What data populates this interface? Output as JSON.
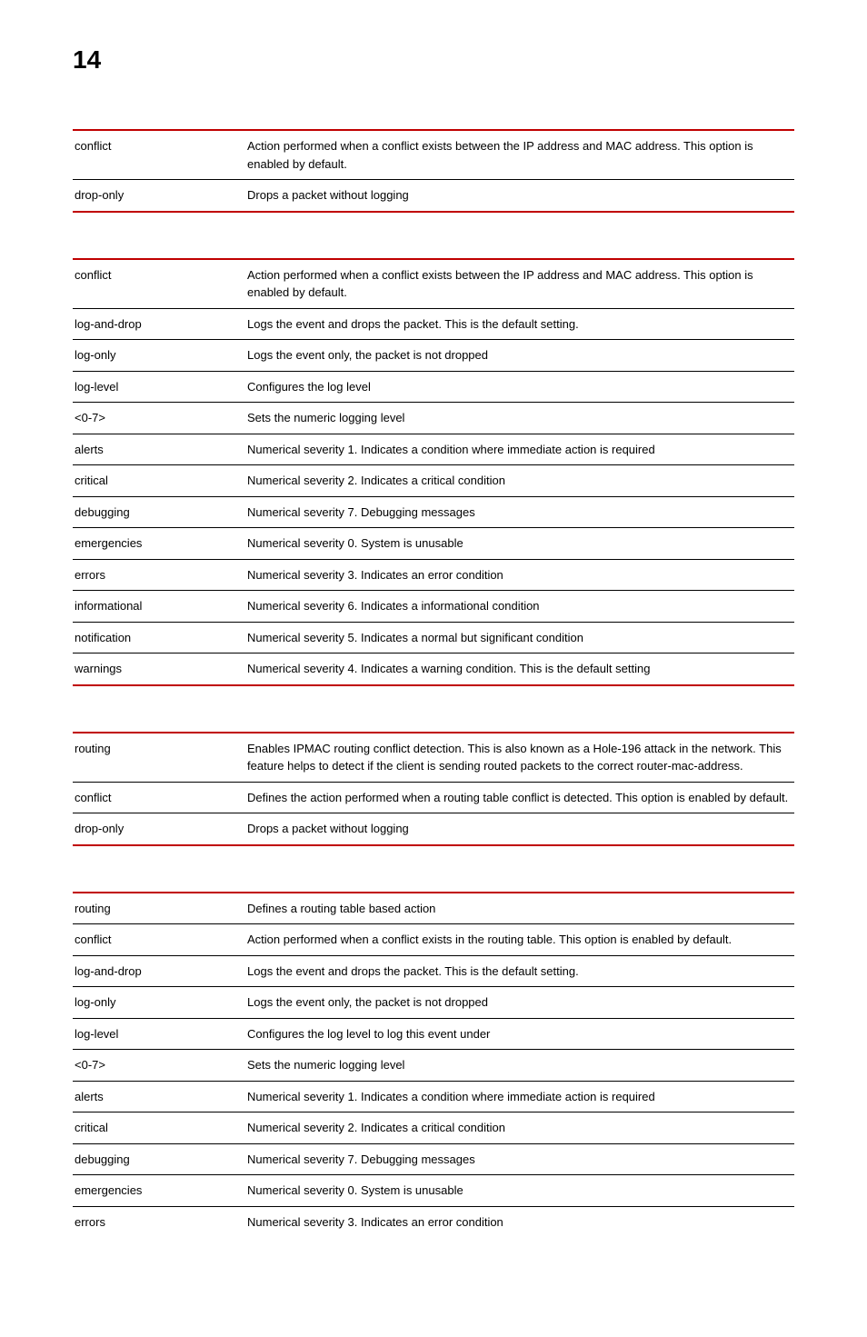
{
  "page_number": "14",
  "colors": {
    "rule": "#c00000",
    "inner_rule": "#000000",
    "text": "#000000",
    "background": "#ffffff"
  },
  "fontsize": {
    "page_number": 28,
    "body": 13
  },
  "tables": [
    {
      "rows": [
        {
          "term": "conflict",
          "desc": "Action performed when a conflict exists between the IP address and MAC address. This option is enabled by default."
        },
        {
          "term": "drop-only",
          "desc": "Drops a packet without logging"
        }
      ]
    },
    {
      "rows": [
        {
          "term": "conflict",
          "desc": "Action performed when a conflict exists between the IP address and MAC address. This option is enabled by default."
        },
        {
          "term": "log-and-drop",
          "desc": "Logs the event and drops the packet. This is the default setting."
        },
        {
          "term": "log-only",
          "desc": "Logs the event only, the packet is not dropped"
        },
        {
          "term": "log-level",
          "desc": "Configures the log level"
        },
        {
          "term": "<0-7>",
          "desc": "Sets the numeric logging level"
        },
        {
          "term": "alerts",
          "desc": "Numerical severity 1. Indicates a condition where immediate action is required"
        },
        {
          "term": "critical",
          "desc": "Numerical severity 2. Indicates a critical condition"
        },
        {
          "term": "debugging",
          "desc": "Numerical severity 7. Debugging messages"
        },
        {
          "term": "emergencies",
          "desc": "Numerical severity 0. System is unusable"
        },
        {
          "term": "errors",
          "desc": "Numerical severity 3. Indicates an error condition"
        },
        {
          "term": "informational",
          "desc": "Numerical severity 6. Indicates a informational condition"
        },
        {
          "term": "notification",
          "desc": "Numerical severity 5. Indicates a normal but significant condition"
        },
        {
          "term": "warnings",
          "desc": "Numerical severity 4. Indicates a warning condition. This is the default setting"
        }
      ]
    },
    {
      "rows": [
        {
          "term": "routing",
          "desc": "Enables IPMAC routing conflict detection. This is also known as a Hole-196 attack in the network. This feature helps to detect if the client is sending routed packets to the correct router-mac-address."
        },
        {
          "term": "conflict",
          "desc": "Defines the action performed when a routing table conflict is detected. This option is enabled by default."
        },
        {
          "term": "drop-only",
          "desc": "Drops a packet without logging"
        }
      ]
    },
    {
      "rows": [
        {
          "term": "routing",
          "desc": "Defines a routing table based action"
        },
        {
          "term": "conflict",
          "desc": "Action performed when a conflict exists in the routing table. This option is enabled by default."
        },
        {
          "term": "log-and-drop",
          "desc": "Logs the event and drops the packet. This is the default setting."
        },
        {
          "term": "log-only",
          "desc": "Logs the event only, the packet is not dropped"
        },
        {
          "term": "log-level",
          "desc": "Configures the log level to log this event under"
        },
        {
          "term": "<0-7>",
          "desc": "Sets the numeric logging level"
        },
        {
          "term": "alerts",
          "desc": "Numerical severity 1. Indicates a condition where immediate action is required"
        },
        {
          "term": "critical",
          "desc": "Numerical severity 2. Indicates a critical condition"
        },
        {
          "term": "debugging",
          "desc": "Numerical severity 7. Debugging messages"
        },
        {
          "term": "emergencies",
          "desc": "Numerical severity 0. System is unusable"
        },
        {
          "term": "errors",
          "desc": "Numerical severity 3. Indicates an error condition"
        }
      ]
    }
  ]
}
